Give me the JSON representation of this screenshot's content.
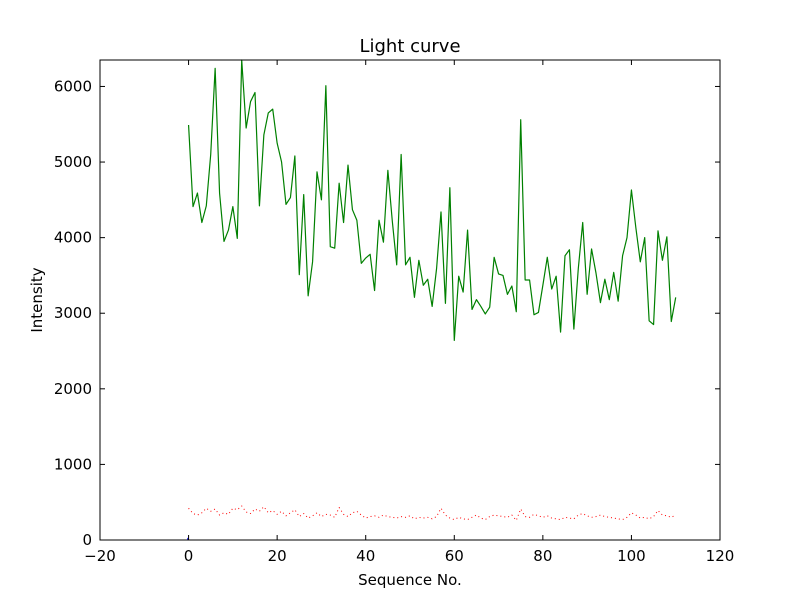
{
  "chart_data": {
    "type": "line",
    "title": "Light curve",
    "xlabel": "Sequence No.",
    "ylabel": "Intensity",
    "xlim": [
      -20,
      120
    ],
    "ylim": [
      0,
      6350
    ],
    "xticks": [
      -20,
      0,
      20,
      40,
      60,
      80,
      100,
      120
    ],
    "yticks": [
      0,
      1000,
      2000,
      3000,
      4000,
      5000,
      6000
    ],
    "xtick_labels": [
      "−20",
      "0",
      "20",
      "40",
      "60",
      "80",
      "100",
      "120"
    ],
    "ytick_labels": [
      "0",
      "1000",
      "2000",
      "3000",
      "4000",
      "5000",
      "6000"
    ],
    "grid": false,
    "series": [
      {
        "color": "#008000",
        "style": "solid",
        "x_start": 0,
        "x_step": 1,
        "values": [
          5490,
          4410,
          4590,
          4200,
          4420,
          5100,
          6240,
          4590,
          3950,
          4100,
          4410,
          3990,
          6350,
          5450,
          5800,
          5920,
          4420,
          5360,
          5650,
          5700,
          5250,
          5000,
          4440,
          4530,
          5080,
          3510,
          4570,
          3230,
          3680,
          4870,
          4500,
          6010,
          3880,
          3860,
          4720,
          4200,
          4960,
          4370,
          4230,
          3660,
          3730,
          3780,
          3300,
          4230,
          3940,
          4890,
          4220,
          3640,
          5100,
          3640,
          3740,
          3210,
          3700,
          3370,
          3450,
          3090,
          3590,
          4340,
          3130,
          4660,
          2640,
          3490,
          3280,
          4100,
          3050,
          3180,
          3090,
          2990,
          3080,
          3740,
          3520,
          3500,
          3250,
          3360,
          3020,
          5560,
          3440,
          3440,
          2980,
          3010,
          3370,
          3740,
          3320,
          3490,
          2750,
          3760,
          3840,
          2790,
          3590,
          4200,
          3250,
          3850,
          3530,
          3140,
          3450,
          3180,
          3540,
          3160,
          3760,
          4000,
          4630,
          4130,
          3680,
          4000,
          2900,
          2850,
          4090,
          3700,
          4010,
          2890,
          3210
        ]
      },
      {
        "color": "#ff0000",
        "style": "dotted",
        "x_start": 0,
        "x_step": 1,
        "values": [
          420,
          350,
          330,
          360,
          420,
          380,
          410,
          330,
          360,
          340,
          420,
          400,
          450,
          370,
          350,
          410,
          380,
          440,
          360,
          390,
          340,
          380,
          320,
          360,
          400,
          310,
          350,
          290,
          320,
          360,
          310,
          340,
          330,
          300,
          430,
          340,
          310,
          360,
          380,
          330,
          290,
          310,
          320,
          300,
          330,
          310,
          300,
          290,
          310,
          300,
          320,
          280,
          300,
          290,
          300,
          280,
          310,
          420,
          330,
          290,
          270,
          300,
          280,
          270,
          300,
          330,
          290,
          270,
          310,
          330,
          320,
          310,
          300,
          330,
          260,
          410,
          310,
          300,
          340,
          320,
          300,
          320,
          290,
          280,
          270,
          300,
          290,
          280,
          330,
          350,
          320,
          300,
          310,
          330,
          310,
          300,
          290,
          280,
          270,
          300,
          360,
          330,
          290,
          300,
          280,
          310,
          390,
          330,
          320,
          300,
          330
        ]
      },
      {
        "color": "#0000ff",
        "style": "solid",
        "x": [
          -0.3,
          0
        ],
        "values": [
          15,
          15
        ]
      }
    ]
  }
}
